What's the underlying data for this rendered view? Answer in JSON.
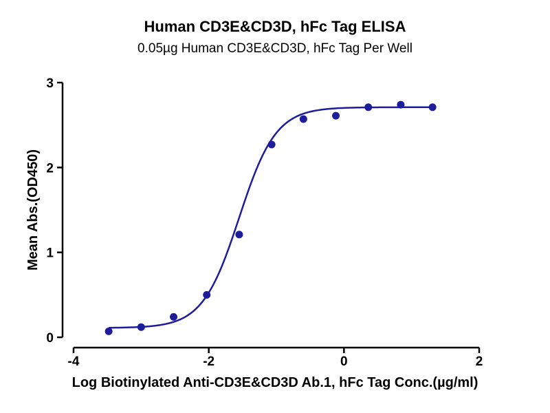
{
  "chart_data": {
    "type": "scatter",
    "title": "Human CD3E&CD3D, hFc Tag ELISA",
    "subtitle": "0.05µg Human CD3E&CD3D,  hFc Tag Per Well",
    "xlabel": "Log Biotinylated Anti-CD3E&CD3D Ab.1, hFc Tag Conc.(µg/ml)",
    "ylabel": "Mean Abs.(OD450)",
    "xlim": [
      -4,
      2
    ],
    "ylim": [
      0,
      3
    ],
    "xticks": [
      "-4",
      "-2",
      "0",
      "2"
    ],
    "yticks": [
      "0",
      "1",
      "2",
      "3"
    ],
    "grid": false,
    "legend": "none",
    "series": [
      {
        "points": [
          {
            "x": -3.48,
            "y": 0.07
          },
          {
            "x": -3.0,
            "y": 0.12
          },
          {
            "x": -2.52,
            "y": 0.24
          },
          {
            "x": -2.03,
            "y": 0.5
          },
          {
            "x": -1.55,
            "y": 1.21
          },
          {
            "x": -1.07,
            "y": 2.27
          },
          {
            "x": -0.6,
            "y": 2.57
          },
          {
            "x": -0.12,
            "y": 2.61
          },
          {
            "x": 0.36,
            "y": 2.71
          },
          {
            "x": 0.84,
            "y": 2.74
          },
          {
            "x": 1.31,
            "y": 2.71
          }
        ],
        "fit": {
          "type": "4PL",
          "bottom": 0.11,
          "top": 2.71,
          "logEC50": -1.55,
          "hillslope": 1.6,
          "x_range": [
            -3.48,
            1.31
          ]
        }
      }
    ],
    "colors": {
      "series": "#1c1c9c",
      "axis": "#000000"
    }
  }
}
